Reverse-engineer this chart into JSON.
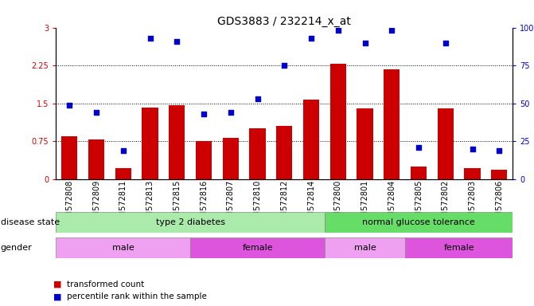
{
  "title": "GDS3883 / 232214_x_at",
  "samples": [
    "GSM572808",
    "GSM572809",
    "GSM572811",
    "GSM572813",
    "GSM572815",
    "GSM572816",
    "GSM572807",
    "GSM572810",
    "GSM572812",
    "GSM572814",
    "GSM572800",
    "GSM572801",
    "GSM572804",
    "GSM572805",
    "GSM572802",
    "GSM572803",
    "GSM572806"
  ],
  "bar_values": [
    0.85,
    0.78,
    0.22,
    1.42,
    1.47,
    0.75,
    0.82,
    1.0,
    1.05,
    1.58,
    2.28,
    1.4,
    2.18,
    0.25,
    1.4,
    0.22,
    0.18
  ],
  "dot_pct": [
    49,
    44,
    19,
    93,
    91,
    43,
    44,
    53,
    75,
    93,
    98,
    90,
    98,
    21,
    90,
    20,
    19
  ],
  "bar_color": "#cc0000",
  "dot_color": "#0000cc",
  "ylim_left": [
    0,
    3
  ],
  "ylim_right": [
    0,
    100
  ],
  "yticks_left": [
    0,
    0.75,
    1.5,
    2.25,
    3
  ],
  "yticks_right": [
    0,
    25,
    50,
    75,
    100
  ],
  "ytick_labels_right": [
    "0",
    "25",
    "50",
    "75",
    "100%"
  ],
  "plot_bg_color": "#ffffff",
  "title_fontsize": 10,
  "tick_fontsize": 7,
  "label_fontsize": 8,
  "disease_light_green": "#b0f0b0",
  "disease_dark_green": "#66cc66",
  "gender_light_pink": "#f0a0f0",
  "gender_dark_pink": "#cc44cc"
}
